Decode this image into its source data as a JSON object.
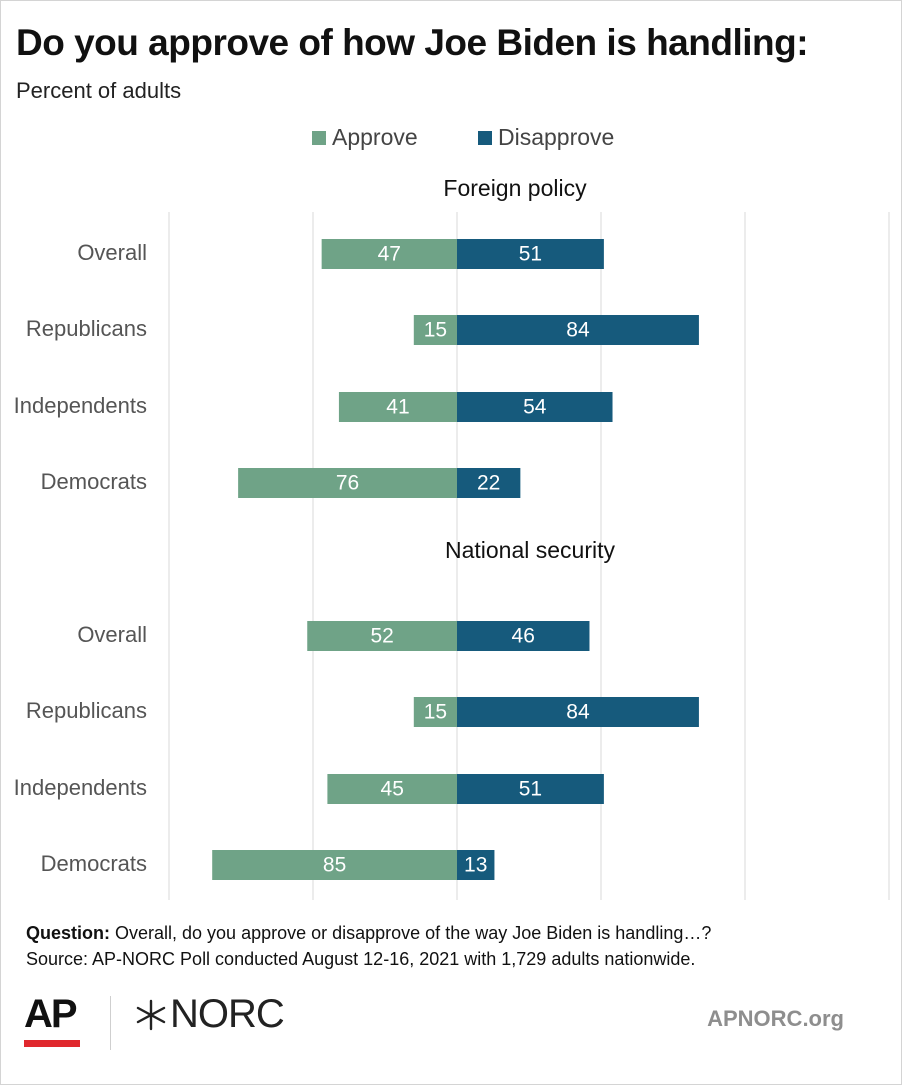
{
  "title": "Do you approve of how Joe Biden is handling:",
  "subtitle": "Percent of adults",
  "legend": {
    "approve_label": "Approve",
    "disapprove_label": "Disapprove"
  },
  "colors": {
    "approve": "#6fa387",
    "disapprove": "#165a7c",
    "grid": "#d9d9d9"
  },
  "chart_data": [
    {
      "type": "bar",
      "orientation": "horizontal-diverging",
      "title": "Foreign policy",
      "categories": [
        "Overall",
        "Republicans",
        "Independents",
        "Democrats"
      ],
      "series": [
        {
          "name": "Approve",
          "values": [
            47,
            15,
            41,
            76
          ]
        },
        {
          "name": "Disapprove",
          "values": [
            51,
            84,
            54,
            22
          ]
        }
      ]
    },
    {
      "type": "bar",
      "orientation": "horizontal-diverging",
      "title": "National security",
      "categories": [
        "Overall",
        "Republicans",
        "Independents",
        "Democrats"
      ],
      "series": [
        {
          "name": "Approve",
          "values": [
            52,
            15,
            45,
            85
          ]
        },
        {
          "name": "Disapprove",
          "values": [
            46,
            84,
            51,
            13
          ]
        }
      ]
    }
  ],
  "footer": {
    "question_label": "Question:",
    "question_text": " Overall, do you approve or disapprove of the way Joe Biden is handling…?",
    "source_text": "Source: AP-NORC Poll conducted August 12-16, 2021 with 1,729 adults nationwide.",
    "logo_ap": "AP",
    "logo_norc": "NORC",
    "site": "APNORC.org"
  }
}
